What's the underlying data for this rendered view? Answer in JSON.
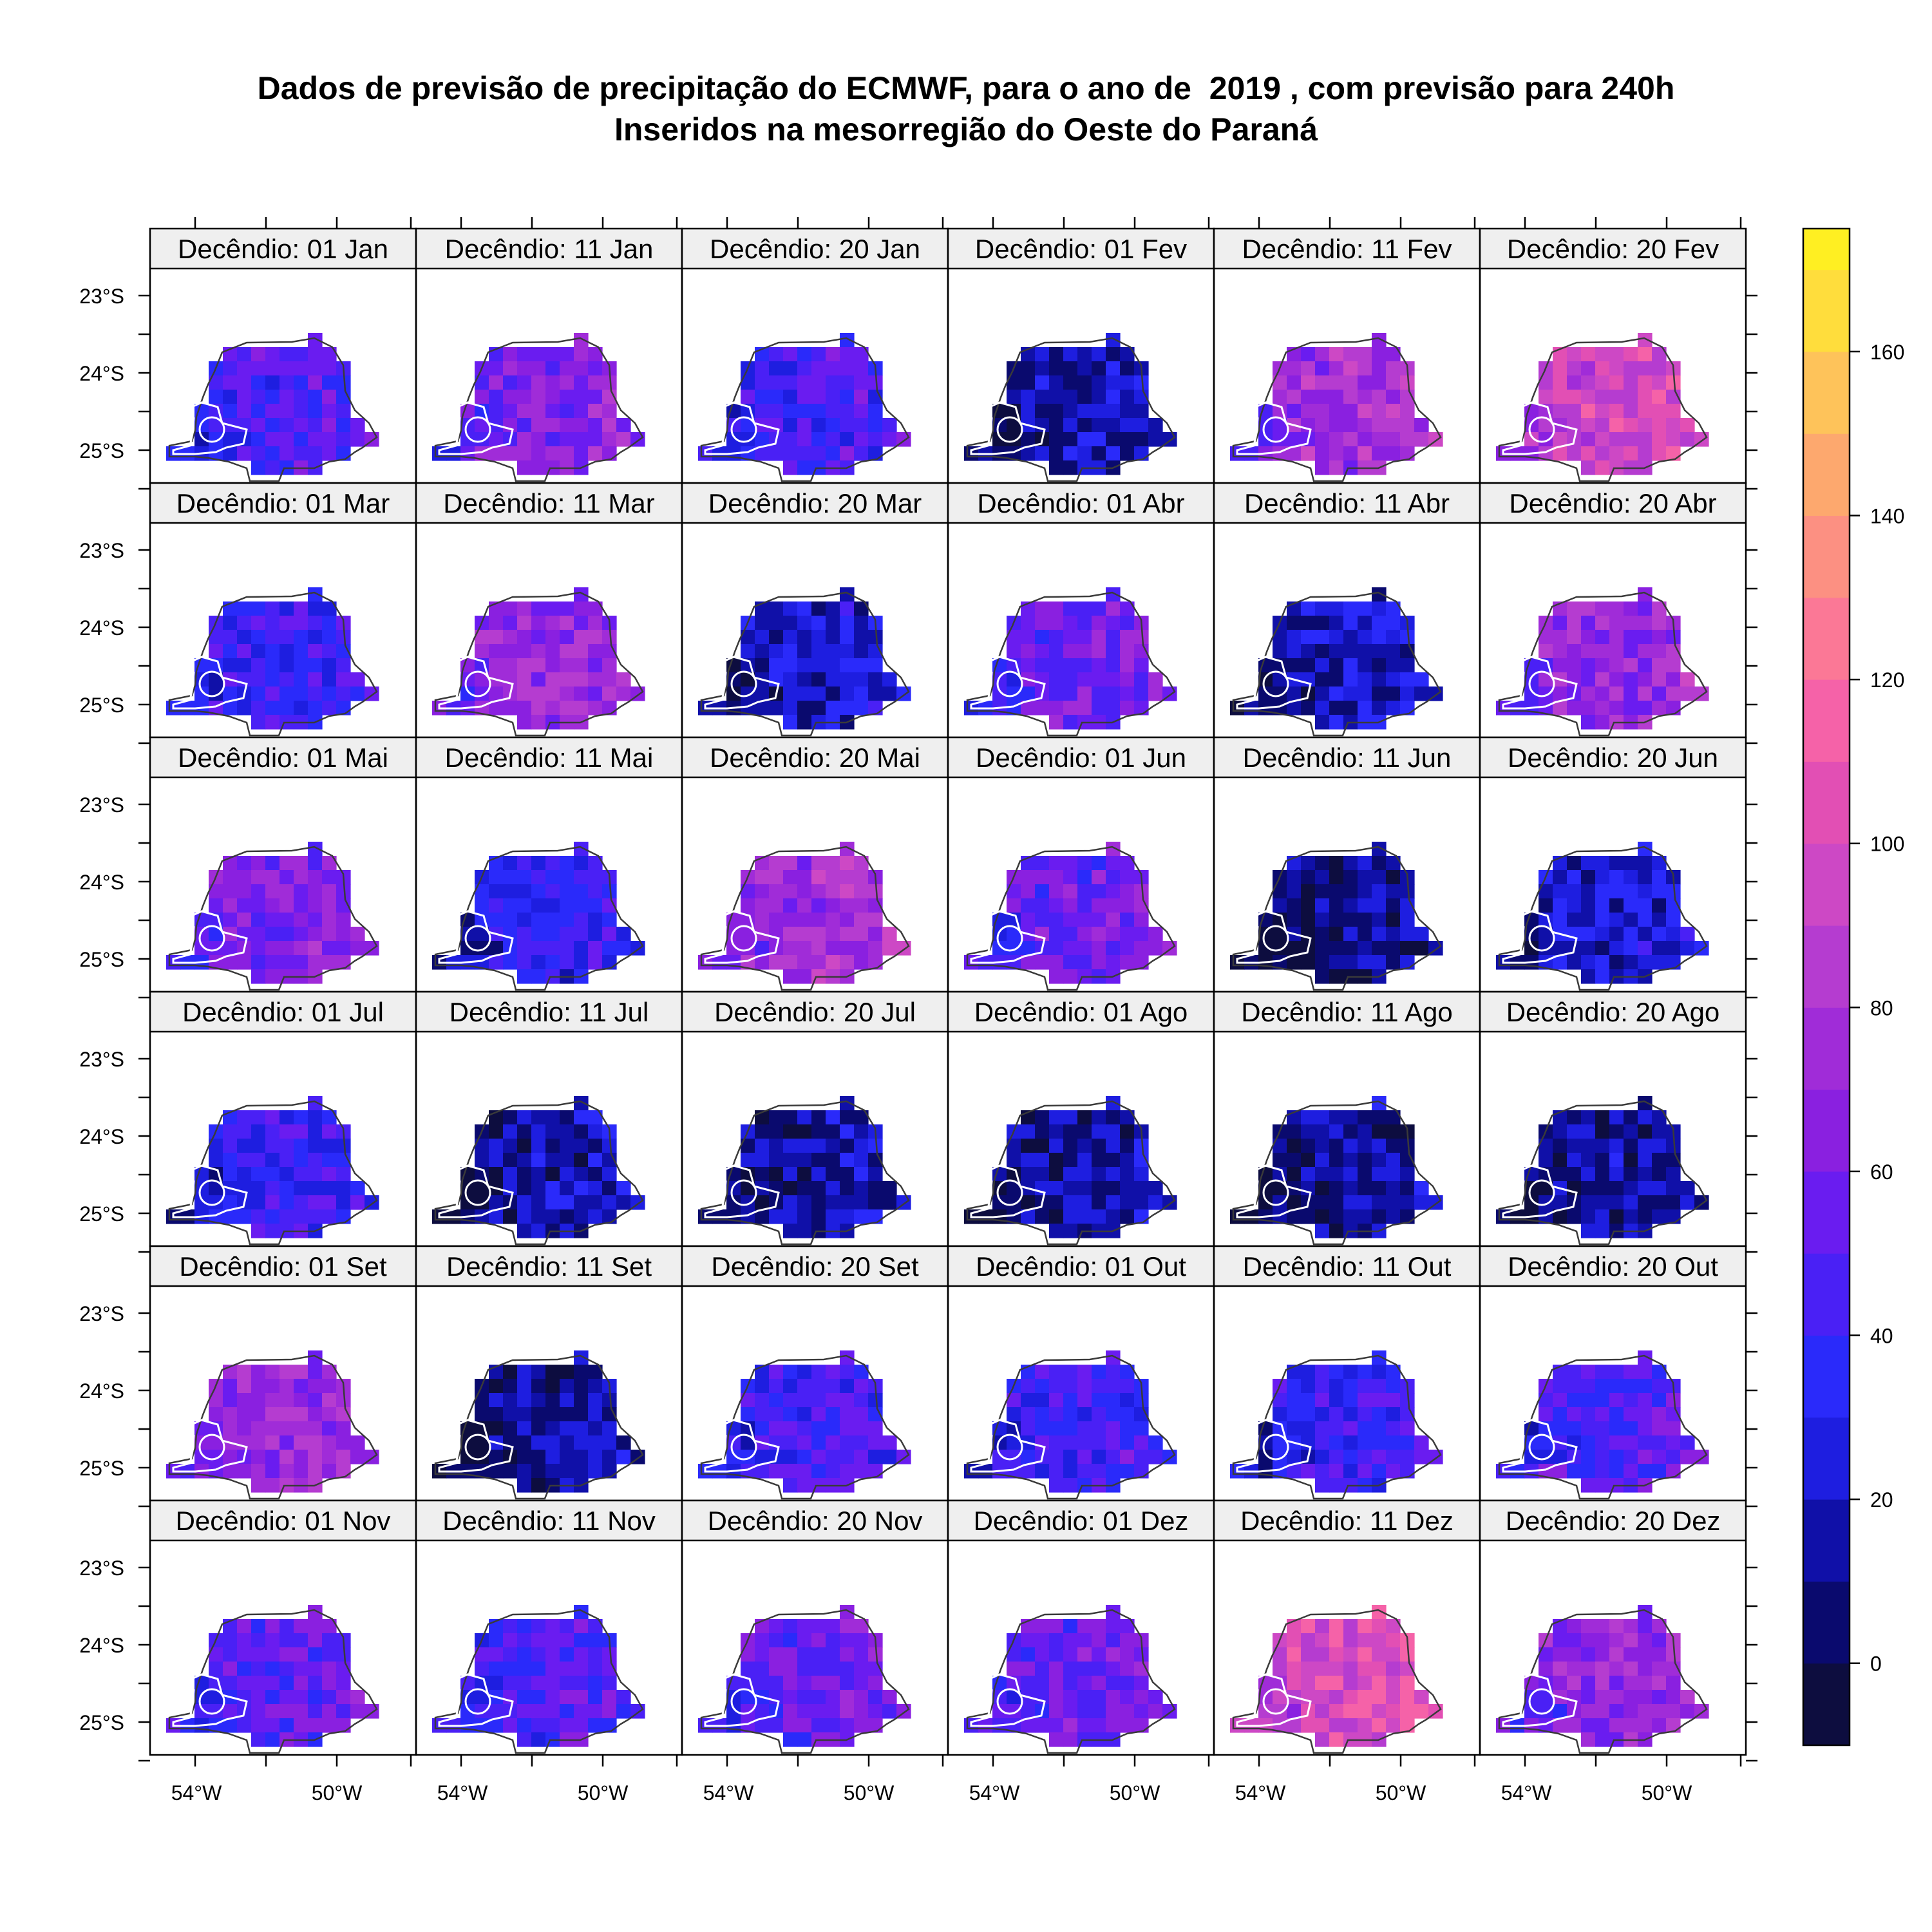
{
  "title": {
    "line1": "Dados de previsão de precipitação do ECMWF, para o ano de  2019 , com previsão para 240h",
    "line2": "Inseridos na mesorregião do Oeste do Paraná"
  },
  "axes": {
    "y_ticks": [
      "23°S",
      "24°S",
      "25°S"
    ],
    "x_ticks": [
      "54°W",
      "50°W"
    ]
  },
  "colorbar": {
    "ticks": [
      "0",
      "20",
      "40",
      "60",
      "80",
      "100",
      "120",
      "140",
      "160"
    ],
    "tick_values": [
      0,
      20,
      40,
      60,
      80,
      100,
      120,
      140,
      160
    ],
    "range": [
      -10,
      175
    ],
    "step": 10,
    "colors": [
      "#0d0d3f",
      "#0a0a6e",
      "#1010a8",
      "#1e1ee0",
      "#2a2afa",
      "#4a20f5",
      "#6a1cf0",
      "#8a20e0",
      "#a02cd8",
      "#b53cd0",
      "#cd48c5",
      "#e24fb4",
      "#f562a8",
      "#fb7896",
      "#fc9082",
      "#fda86e",
      "#fec35a",
      "#ffdd3c",
      "#ffef22",
      "#ffff66"
    ]
  },
  "panels": [
    {
      "label": "Decêndio: 01 Jan",
      "level": 45
    },
    {
      "label": "Decêndio: 11 Jan",
      "level": 62
    },
    {
      "label": "Decêndio: 20 Jan",
      "level": 42
    },
    {
      "label": "Decêndio: 01 Fev",
      "level": 18
    },
    {
      "label": "Decêndio: 11 Fev",
      "level": 75
    },
    {
      "label": "Decêndio: 20 Fev",
      "level": 95
    },
    {
      "label": "Decêndio: 01 Mar",
      "level": 40
    },
    {
      "label": "Decêndio: 11 Mar",
      "level": 70
    },
    {
      "label": "Decêndio: 20 Mar",
      "level": 22
    },
    {
      "label": "Decêndio: 01 Abr",
      "level": 55
    },
    {
      "label": "Decêndio: 11 Abr",
      "level": 20
    },
    {
      "label": "Decêndio: 20 Abr",
      "level": 70
    },
    {
      "label": "Decêndio: 01 Mai",
      "level": 62
    },
    {
      "label": "Decêndio: 11 Mai",
      "level": 35
    },
    {
      "label": "Decêndio: 20 Mai",
      "level": 75
    },
    {
      "label": "Decêndio: 01 Jun",
      "level": 55
    },
    {
      "label": "Decêndio: 11 Jun",
      "level": 8
    },
    {
      "label": "Decêndio: 20 Jun",
      "level": 22
    },
    {
      "label": "Decêndio: 01 Jul",
      "level": 38
    },
    {
      "label": "Decêndio: 11 Jul",
      "level": 14
    },
    {
      "label": "Decêndio: 20 Jul",
      "level": 14
    },
    {
      "label": "Decêndio: 01 Ago",
      "level": 13
    },
    {
      "label": "Decêndio: 11 Ago",
      "level": 12
    },
    {
      "label": "Decêndio: 20 Ago",
      "level": 13
    },
    {
      "label": "Decêndio: 01 Set",
      "level": 70
    },
    {
      "label": "Decêndio: 11 Set",
      "level": 12
    },
    {
      "label": "Decêndio: 20 Set",
      "level": 42
    },
    {
      "label": "Decêndio: 01 Out",
      "level": 42
    },
    {
      "label": "Decêndio: 11 Out",
      "level": 38
    },
    {
      "label": "Decêndio: 20 Out",
      "level": 48
    },
    {
      "label": "Decêndio: 01 Nov",
      "level": 52
    },
    {
      "label": "Decêndio: 11 Nov",
      "level": 45
    },
    {
      "label": "Decêndio: 20 Nov",
      "level": 55
    },
    {
      "label": "Decêndio: 01 Dez",
      "level": 55
    },
    {
      "label": "Decêndio: 11 Dez",
      "level": 100
    },
    {
      "label": "Decêndio: 20 Dez",
      "level": 68
    }
  ]
}
